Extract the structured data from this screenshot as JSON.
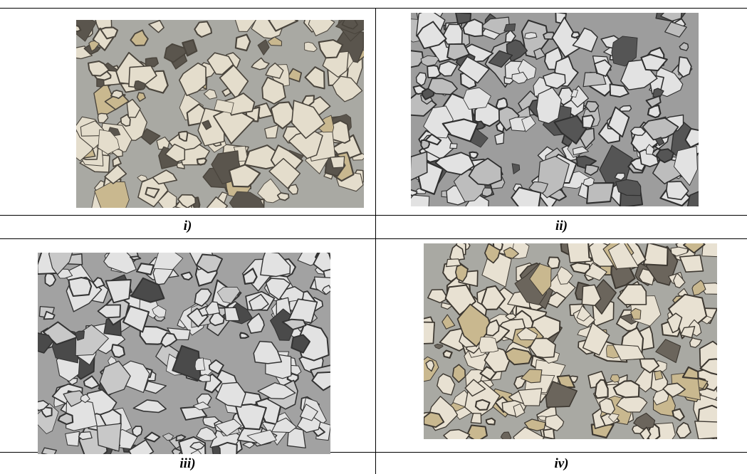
{
  "figure": {
    "panels": [
      {
        "caption": "i)",
        "image": "photo-concrete-section-color-tan-aggregate"
      },
      {
        "caption": "ii)",
        "image": "photo-concrete-section-grayscale"
      },
      {
        "caption": "iii)",
        "image": "photo-concrete-section-grayscale-dense"
      },
      {
        "caption": "iv)",
        "image": "photo-concrete-section-color-light-aggregate"
      }
    ],
    "colors": {
      "matrix_gray": "#a9a9a3",
      "aggregate_light": "#e4ddcc",
      "aggregate_tan": "#c9b88f",
      "aggregate_dark": "#5a554d",
      "gray_matrix": "#9d9d9d",
      "gray_light": "#e2e2e2",
      "gray_dark": "#555555"
    }
  }
}
